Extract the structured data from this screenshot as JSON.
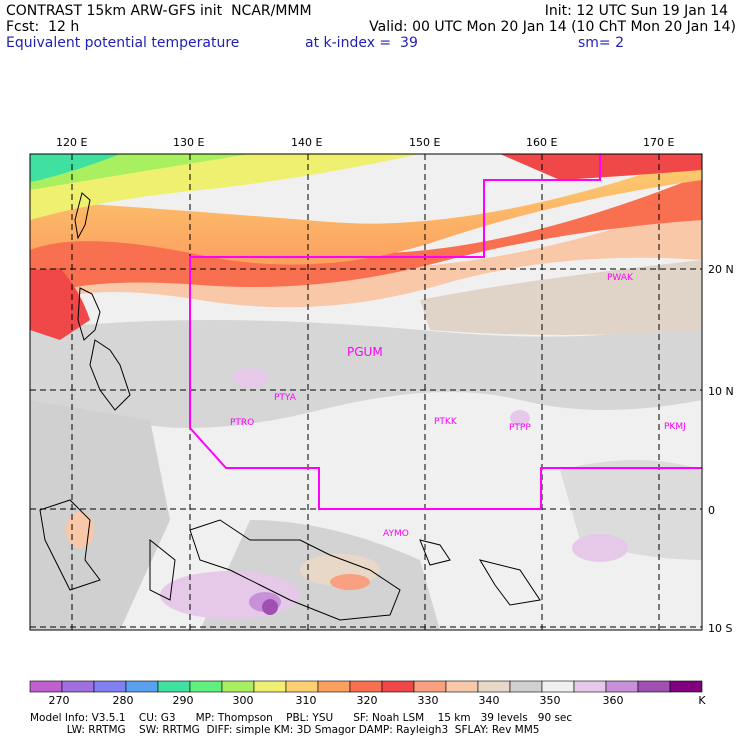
{
  "header": {
    "line1_left": "CONTRAST 15km ARW-GFS init  NCAR/MMM",
    "line1_right": "Init: 12 UTC Sun 19 Jan 14",
    "line2_left": "Fcst:  12 h",
    "line2_right": "Valid: 00 UTC Mon 20 Jan 14 (10 ChT Mon 20 Jan 14)",
    "line3_left": "Equivalent potential temperature",
    "line3_mid": "at k-index =  39",
    "line3_right": "sm= 2"
  },
  "map": {
    "lon_ticks": [
      "120 E",
      "130 E",
      "140 E",
      "150 E",
      "160 E",
      "170 E"
    ],
    "lat_ticks": [
      "20 N",
      "10 N",
      "0",
      "10 S"
    ],
    "stations": [
      "PGUM",
      "PWAK",
      "PTYA",
      "PTRO",
      "PTKK",
      "PTPP",
      "PKMJ",
      "AYMO"
    ],
    "boundary_color": "#ff00ff"
  },
  "colorbar": {
    "labels": [
      "270",
      "280",
      "290",
      "300",
      "310",
      "320",
      "330",
      "340",
      "350",
      "360"
    ],
    "unit": "K",
    "colors": [
      "#c060d0",
      "#a070e0",
      "#8080f0",
      "#5aa0f0",
      "#40e0a0",
      "#60f080",
      "#a8f060",
      "#f0f070",
      "#fcd070",
      "#fca060",
      "#f87050",
      "#f04848",
      "#f8a080",
      "#f8c8a8",
      "#e8d8c8",
      "#d0d0d0",
      "#f0f0f0",
      "#e6c8e8",
      "#c890d8",
      "#a050b0",
      "#800080"
    ]
  },
  "model_info": {
    "line1": "Model Info: V3.5.1    CU: G3      MP: Thompson    PBL: YSU      SF: Noah LSM    15 km   39 levels   90 sec",
    "line2": "           LW: RRTMG    SW: RRTMG  DIFF: simple KM: 3D Smagor DAMP: Rayleigh3  SFLAY: Rev MM5"
  }
}
